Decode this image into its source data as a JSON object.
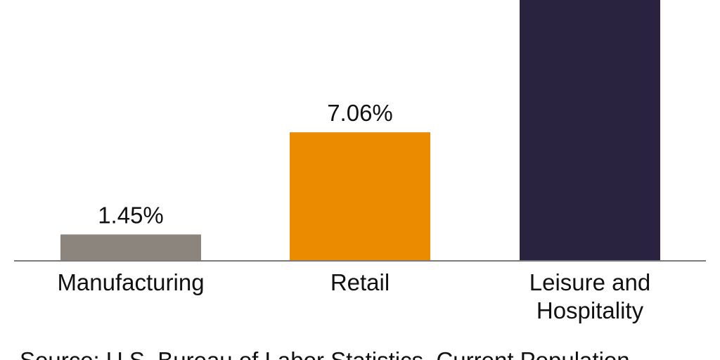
{
  "chart_data": {
    "type": "bar",
    "categories": [
      "Manufacturing",
      "Retail",
      "Leisure and Hospitality"
    ],
    "category_label_lines": [
      [
        "Manufacturing"
      ],
      [
        "Retail"
      ],
      [
        "Leisure and",
        "Hospitality"
      ]
    ],
    "values": [
      1.45,
      7.06,
      14.5
    ],
    "data_labels": [
      "1.45%",
      "7.06%",
      ""
    ],
    "colors": [
      "#8c857d",
      "#eb8c00",
      "#2a233f"
    ],
    "axis_color": "#7a7a7a",
    "grid": false,
    "title": "",
    "xlabel": "",
    "ylabel": ""
  },
  "source_note": "Source: U.S. Bureau of Labor Statistics, Current Population"
}
